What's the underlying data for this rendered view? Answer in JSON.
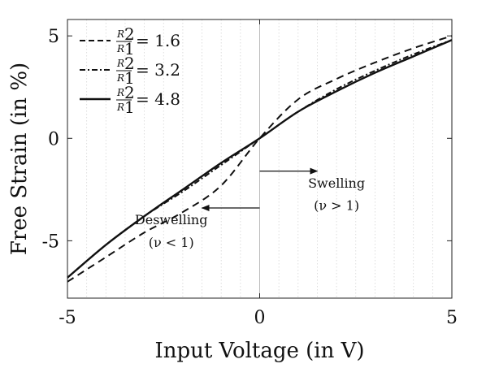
{
  "chart_data": {
    "type": "line",
    "xlabel": "Input Voltage (in V)",
    "ylabel": "Free Strain (in %)",
    "xlim": [
      -5,
      5
    ],
    "ylim": [
      -7.8,
      5.8
    ],
    "xticks": [
      -5,
      0,
      5
    ],
    "xtick_labels": [
      "-5",
      "0",
      "5"
    ],
    "yticks": [
      -5,
      0,
      5
    ],
    "ytick_labels": [
      "-5",
      "0",
      "5"
    ],
    "grid": "vertical dotted",
    "legend_position": "top-left",
    "series": [
      {
        "name": "R2/R1 = 1.6",
        "legend_ratio_num": "R",
        "legend_ratio_num_sub": "2",
        "legend_ratio_den": "R",
        "legend_ratio_den_sub": "1",
        "legend_value": "= 1.6",
        "style": "dashed",
        "x": [
          -5,
          -4,
          -3,
          -2,
          -1,
          0,
          1,
          2,
          3,
          4,
          5
        ],
        "y": [
          -7.0,
          -5.8,
          -4.6,
          -3.6,
          -2.3,
          0,
          1.9,
          2.9,
          3.7,
          4.4,
          5.0
        ]
      },
      {
        "name": "R2/R1 = 3.2",
        "legend_ratio_num": "R",
        "legend_ratio_num_sub": "2",
        "legend_ratio_den": "R",
        "legend_ratio_den_sub": "1",
        "legend_value": "= 3.2",
        "style": "dashdot",
        "x": [
          -5,
          -4,
          -3,
          -2,
          -1,
          0,
          1,
          2,
          3,
          4,
          5
        ],
        "y": [
          -6.8,
          -5.2,
          -3.8,
          -2.6,
          -1.3,
          0,
          1.3,
          2.4,
          3.3,
          4.1,
          4.8
        ]
      },
      {
        "name": "R2/R1 = 4.8",
        "legend_ratio_num": "R",
        "legend_ratio_num_sub": "2",
        "legend_ratio_den": "R",
        "legend_ratio_den_sub": "1",
        "legend_value": "= 4.8",
        "style": "solid",
        "x": [
          -5,
          -4,
          -3,
          -2,
          -1,
          0,
          1,
          2,
          3,
          4,
          5
        ],
        "y": [
          -6.8,
          -5.2,
          -3.8,
          -2.5,
          -1.2,
          0,
          1.3,
          2.3,
          3.2,
          4.0,
          4.8
        ]
      }
    ],
    "annotations": [
      {
        "text": "Swelling",
        "text2": "(ν > 1)",
        "arrow": "right",
        "arrow_from": [
          0,
          -1.6
        ],
        "arrow_to": [
          1.5,
          -1.6
        ],
        "text_x": 2.0,
        "text_y": -2.4,
        "text2_y": -3.5
      },
      {
        "text": "Deswelling",
        "text2": "(ν < 1)",
        "arrow": "left",
        "arrow_from": [
          0,
          -3.4
        ],
        "arrow_to": [
          -1.5,
          -3.4
        ],
        "text_x": -2.3,
        "text_y": -4.2,
        "text2_y": -5.3
      }
    ]
  }
}
